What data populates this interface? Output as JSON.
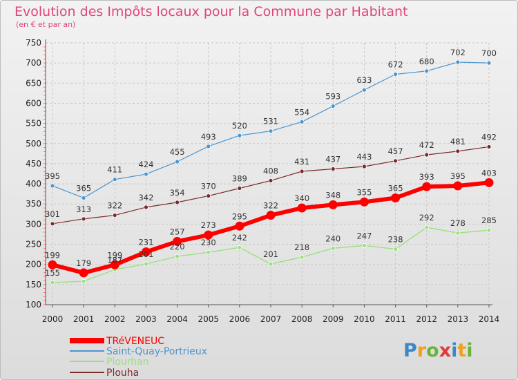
{
  "title": "Evolution des Impôts locaux pour la Commune par Habitant",
  "subtitle": "(en € et par an)",
  "logo_text": "Proxiti",
  "chart_data": {
    "type": "line",
    "title": "Evolution des Impôts locaux pour la Commune par Habitant",
    "subtitle": "(en € et par an)",
    "xlabel": "",
    "ylabel": "",
    "x": [
      "2000",
      "2001",
      "2002",
      "2003",
      "2004",
      "2005",
      "2006",
      "2007",
      "2008",
      "2009",
      "2010",
      "2011",
      "2012",
      "2013",
      "2014"
    ],
    "ylim": [
      100,
      750
    ],
    "yticks": [
      100,
      150,
      200,
      250,
      300,
      350,
      400,
      450,
      500,
      550,
      600,
      650,
      700,
      750
    ],
    "grid": true,
    "legend_position": "bottom-left",
    "series": [
      {
        "name": "TRéVENEUC",
        "color": "#ff0000",
        "values": [
          199,
          179,
          199,
          231,
          257,
          273,
          295,
          322,
          340,
          348,
          355,
          365,
          393,
          395,
          403
        ]
      },
      {
        "name": "Saint-Quay-Portrieux",
        "color": "#4b95cf",
        "values": [
          395,
          365,
          411,
          424,
          455,
          493,
          520,
          531,
          554,
          593,
          633,
          672,
          680,
          702,
          700
        ]
      },
      {
        "name": "Plourhan",
        "color": "#9be07e",
        "values": [
          155,
          158,
          187,
          201,
          220,
          230,
          242,
          201,
          218,
          240,
          247,
          238,
          292,
          278,
          285
        ]
      },
      {
        "name": "Plouha",
        "color": "#7a2a2a",
        "values": [
          301,
          313,
          322,
          342,
          354,
          370,
          389,
          408,
          431,
          437,
          443,
          457,
          472,
          481,
          492
        ]
      }
    ],
    "labels_shown": [
      [
        "199",
        "179",
        "199",
        "231",
        "257",
        "273",
        "295",
        "322",
        "340",
        "348",
        "355",
        "365",
        "393",
        "395",
        "403"
      ],
      [
        "395",
        "365",
        "411",
        "424",
        "455",
        "493",
        "520",
        "531",
        "554",
        "593",
        "633",
        "672",
        "680",
        "702",
        "700"
      ],
      [
        "155",
        "",
        "187",
        "201",
        "220",
        "230",
        "242",
        "201",
        "218",
        "240",
        "247",
        "238",
        "292",
        "278",
        "285"
      ],
      [
        "301",
        "313",
        "322",
        "342",
        "354",
        "370",
        "389",
        "408",
        "431",
        "437",
        "443",
        "457",
        "472",
        "481",
        "492"
      ]
    ]
  }
}
